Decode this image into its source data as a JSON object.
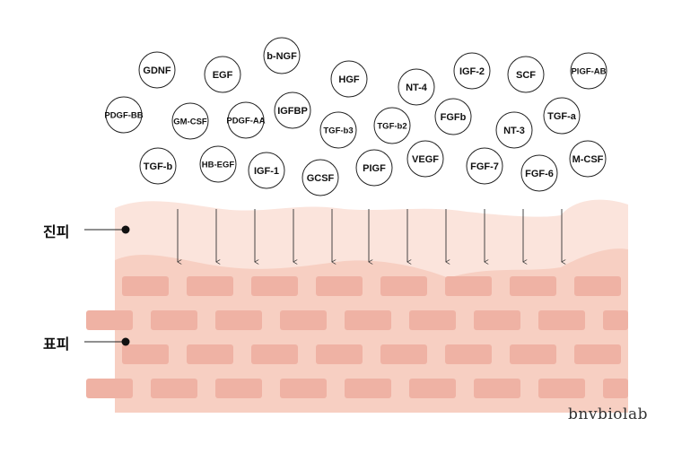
{
  "labels": {
    "upper": "진피",
    "lower": "표피"
  },
  "watermark": "bnvbiolab",
  "colors": {
    "upper_layer": "#fbe4dc",
    "lower_layer": "#f7cfc2",
    "brick": "#efb2a4",
    "arrow": "#333333",
    "circle_stroke": "#222222"
  },
  "growth_factors": [
    "GDNF",
    "EGF",
    "b-NGF",
    "HGF",
    "NT-4",
    "IGF-2",
    "SCF",
    "PlGF-AB",
    "PDGF-BB",
    "GM-CSF",
    "PDGF-AA",
    "IGFBP",
    "TGF-b3",
    "TGF-b2",
    "FGFb",
    "NT-3",
    "TGF-a",
    "TGF-b",
    "HB-EGF",
    "IGF-1",
    "GCSF",
    "PIGF",
    "VEGF",
    "FGF-7",
    "FGF-6",
    "M-CSF"
  ]
}
